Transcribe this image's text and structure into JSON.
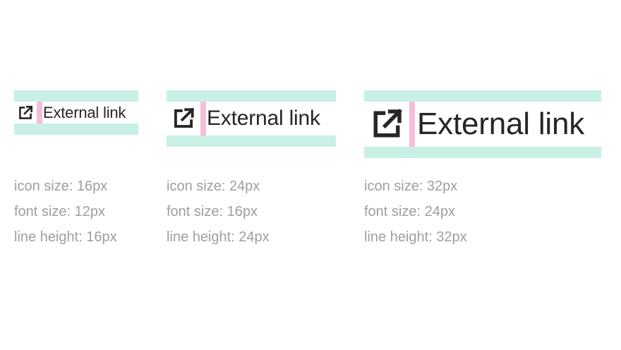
{
  "colors": {
    "padding_band": "#c8f0e6",
    "gap_marker": "#f6bed6",
    "text": "#262626",
    "caption": "#9e9e9e"
  },
  "specs": [
    {
      "link_text": "External link",
      "icon": "external-link-icon",
      "captions": [
        "icon size: 16px",
        "font size: 12px",
        "line height: 16px"
      ]
    },
    {
      "link_text": "External link",
      "icon": "external-link-icon",
      "captions": [
        "icon size: 24px",
        "font size: 16px",
        "line height: 24px"
      ]
    },
    {
      "link_text": "External link",
      "icon": "external-link-icon",
      "captions": [
        "icon size: 32px",
        "font size: 24px",
        "line height: 32px"
      ]
    }
  ]
}
